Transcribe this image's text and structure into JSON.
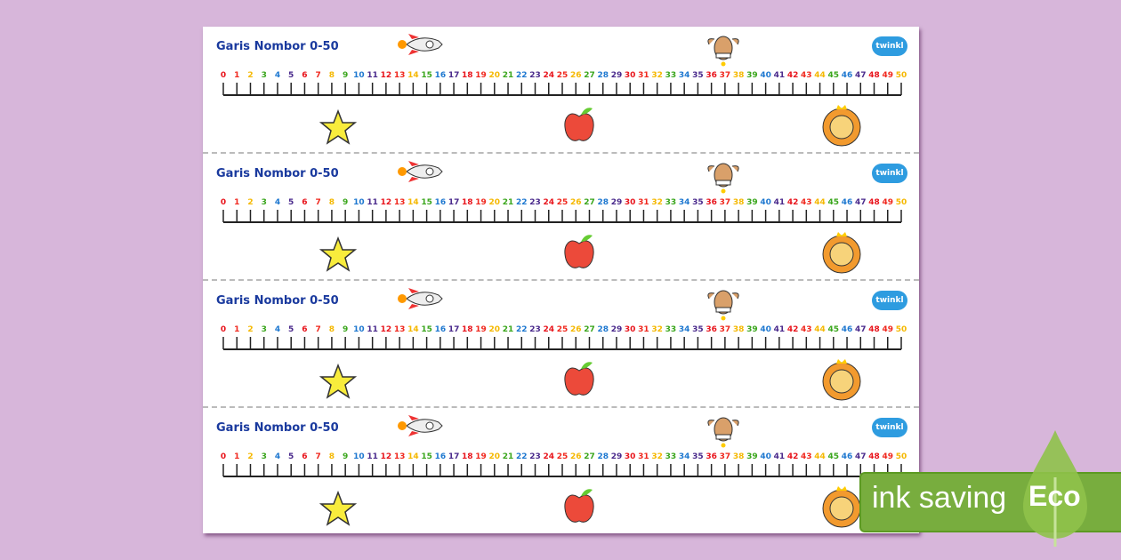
{
  "sheet": {
    "strips": [
      {
        "title": "Garis Nombor 0-50"
      },
      {
        "title": "Garis Nombor 0-50"
      },
      {
        "title": "Garis Nombor 0-50"
      },
      {
        "title": "Garis Nombor 0-50"
      }
    ],
    "number_range": [
      0,
      50
    ],
    "number_colors": [
      "#e8141c",
      "#f0281e",
      "#f5b800",
      "#3aa61c",
      "#1e78d0",
      "#4a2a8c"
    ],
    "logo": "twinkl",
    "icons": [
      "rocket-icon",
      "dog-icon",
      "star-icon",
      "apple-icon",
      "lion-icon"
    ]
  },
  "badge": {
    "text": "ink saving",
    "label": "Eco",
    "color": "#78ad3e"
  }
}
